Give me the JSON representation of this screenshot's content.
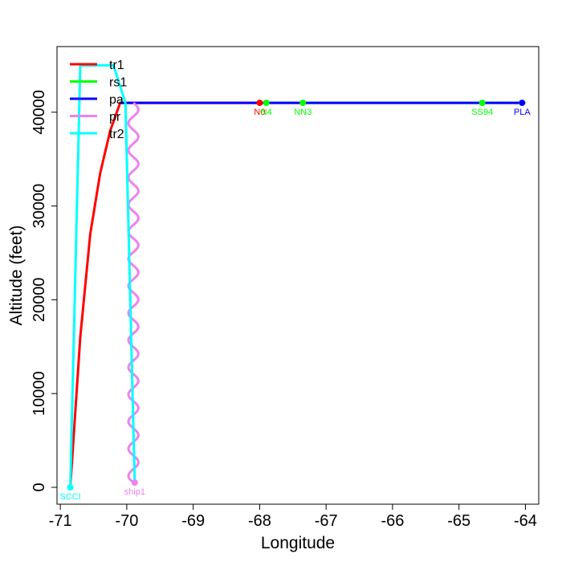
{
  "chart_data": {
    "type": "line",
    "title": "",
    "xlabel": "Longitude",
    "ylabel": "Altitude (feet)",
    "xlim": [
      -71.05,
      -63.8
    ],
    "ylim": [
      -1800,
      47000
    ],
    "xticks": [
      -71,
      -70,
      -69,
      -68,
      -67,
      -66,
      -65,
      -64
    ],
    "yticks": [
      0,
      10000,
      20000,
      30000,
      40000
    ],
    "grid": false,
    "legend": "top-left",
    "legend_entries": [
      {
        "label": "tr1",
        "color": "#ff0000"
      },
      {
        "label": "rs1",
        "color": "#00ff00"
      },
      {
        "label": "pa",
        "color": "#0000ff"
      },
      {
        "label": "pr",
        "color": "#ee82ee"
      },
      {
        "label": "tr2",
        "color": "#00ffff"
      }
    ],
    "series": [
      {
        "name": "tr1",
        "color": "#ff0000",
        "x": [
          -70.85,
          -70.7,
          -70.55,
          -70.4,
          -70.25,
          -70.1,
          -68.0
        ],
        "y": [
          0,
          16000,
          27000,
          33500,
          38000,
          41000,
          41000
        ]
      },
      {
        "name": "rs1",
        "color": "#00ff00",
        "x": [
          -67.95,
          -67.4,
          -64.65,
          -64.0
        ],
        "y": [
          41000,
          41000,
          41000,
          41000
        ]
      },
      {
        "name": "pa",
        "color": "#0000ff",
        "x": [
          -70.1,
          -64.1
        ],
        "y": [
          41000,
          41000
        ]
      },
      {
        "name": "pr",
        "color": "#ee82ee",
        "x_center": -69.9,
        "amplitude": 0.075,
        "y_start": 41000,
        "y_end": 500,
        "cycles": 14
      },
      {
        "name": "tr2",
        "color": "#00ffff",
        "x": [
          -70.85,
          -70.7,
          -70.2,
          -70.02,
          -69.88
        ],
        "y": [
          0,
          45000,
          45000,
          41000,
          500
        ]
      }
    ],
    "points": [
      {
        "label": "SCCI",
        "x": -70.85,
        "y": 0,
        "color": "#00ffff"
      },
      {
        "label": "ship1",
        "x": -69.88,
        "y": 500,
        "color": "#ee82ee"
      },
      {
        "label": "N0",
        "x": -68.0,
        "y": 41000,
        "color": "#ff0000"
      },
      {
        "label": "N4",
        "x": -67.9,
        "y": 41000,
        "color": "#00ff00"
      },
      {
        "label": "NN3",
        "x": -67.35,
        "y": 41000,
        "color": "#00ff00"
      },
      {
        "label": "SS94",
        "x": -64.65,
        "y": 41000,
        "color": "#00ff00"
      },
      {
        "label": "PLA",
        "x": -64.05,
        "y": 41000,
        "color": "#0000ff"
      }
    ]
  }
}
